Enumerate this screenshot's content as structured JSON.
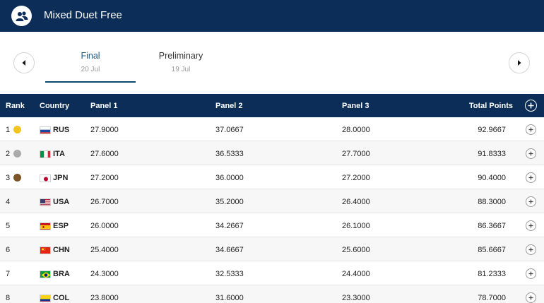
{
  "header": {
    "title": "Mixed Duet Free",
    "icon": "duet-swimmers-icon",
    "background": "#0c2d57"
  },
  "tabs": [
    {
      "label": "Final",
      "date": "20 Jul",
      "active": true
    },
    {
      "label": "Preliminary",
      "date": "19 Jul",
      "active": false
    }
  ],
  "table": {
    "columns": {
      "rank": "Rank",
      "country": "Country",
      "panel1": "Panel 1",
      "panel2": "Panel 2",
      "panel3": "Panel 3",
      "total": "Total Points"
    },
    "rows": [
      {
        "rank": "1",
        "medal": "gold",
        "medal_color": "#f2c51d",
        "country": "RUS",
        "flag": "russia",
        "panel1": "27.9000",
        "panel2": "37.0667",
        "panel3": "28.0000",
        "total": "92.9667"
      },
      {
        "rank": "2",
        "medal": "silver",
        "medal_color": "#aaaaaa",
        "country": "ITA",
        "flag": "italy",
        "panel1": "27.6000",
        "panel2": "36.5333",
        "panel3": "27.7000",
        "total": "91.8333"
      },
      {
        "rank": "3",
        "medal": "bronze",
        "medal_color": "#7a5327",
        "country": "JPN",
        "flag": "japan",
        "panel1": "27.2000",
        "panel2": "36.0000",
        "panel3": "27.2000",
        "total": "90.4000"
      },
      {
        "rank": "4",
        "medal": "",
        "medal_color": "",
        "country": "USA",
        "flag": "usa",
        "panel1": "26.7000",
        "panel2": "35.2000",
        "panel3": "26.4000",
        "total": "88.3000"
      },
      {
        "rank": "5",
        "medal": "",
        "medal_color": "",
        "country": "ESP",
        "flag": "spain",
        "panel1": "26.0000",
        "panel2": "34.2667",
        "panel3": "26.1000",
        "total": "86.3667"
      },
      {
        "rank": "6",
        "medal": "",
        "medal_color": "",
        "country": "CHN",
        "flag": "china",
        "panel1": "25.4000",
        "panel2": "34.6667",
        "panel3": "25.6000",
        "total": "85.6667"
      },
      {
        "rank": "7",
        "medal": "",
        "medal_color": "",
        "country": "BRA",
        "flag": "brazil",
        "panel1": "24.3000",
        "panel2": "32.5333",
        "panel3": "24.4000",
        "total": "81.2333"
      },
      {
        "rank": "8",
        "medal": "",
        "medal_color": "",
        "country": "COL",
        "flag": "colombia",
        "panel1": "23.8000",
        "panel2": "31.6000",
        "panel3": "23.3000",
        "total": "78.7000"
      }
    ]
  }
}
